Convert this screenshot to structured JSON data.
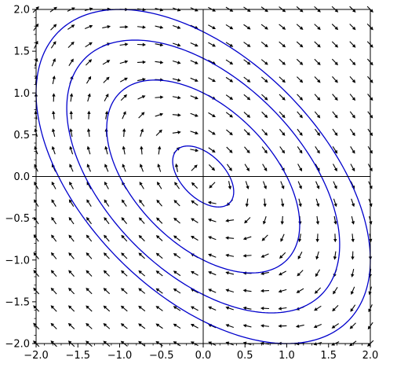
{
  "chart_data": {
    "type": "vector-field-with-level-curves",
    "xlim": [
      -2.0,
      2.0
    ],
    "ylim": [
      -2.0,
      2.0
    ],
    "x_ticks": [
      -2.0,
      -1.5,
      -1.0,
      -0.5,
      0.0,
      0.5,
      1.0,
      1.5,
      2.0
    ],
    "x_tick_labels": [
      "−2.0",
      "−1.5",
      "−1.0",
      "−0.5",
      "0.0",
      "0.5",
      "1.0",
      "1.5",
      "2.0"
    ],
    "y_ticks": [
      2.0,
      1.5,
      1.0,
      0.5,
      0.0,
      -0.5,
      -1.0,
      -1.5,
      -2.0
    ],
    "y_tick_labels": [
      "2.0",
      "1.5",
      "1.0",
      "0.5",
      "0.0",
      "−0.5",
      "−1.0",
      "−1.5",
      "−2.0"
    ],
    "grid": false,
    "axes_through_origin": true,
    "vector_field": {
      "dx": "x + 2y",
      "dy": "-2x - y",
      "samples_per_axis": 20,
      "color": "#000000"
    },
    "level_curves": {
      "equation": "x^2 + x*y + y^2 = c",
      "levels": [
        0.1,
        1.0,
        2.0,
        3.0
      ],
      "color": "#0000cc"
    }
  }
}
